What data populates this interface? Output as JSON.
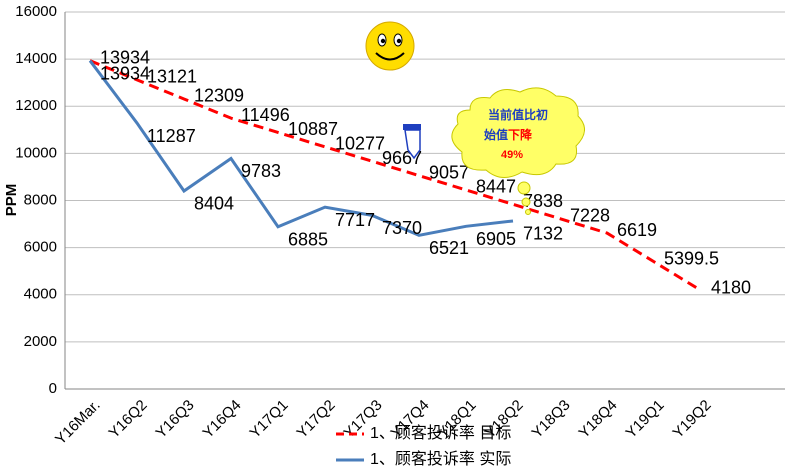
{
  "chart_data": {
    "type": "line",
    "categories": [
      "Y16Mar.",
      "Y16Q2",
      "Y16Q3",
      "Y16Q4",
      "Y17Q1",
      "Y17Q2",
      "Y17Q3",
      "Y17Q4",
      "Y18Q1",
      "Y18Q2",
      "Y18Q3",
      "Y18Q4",
      "Y19Q1",
      "Y19Q2"
    ],
    "series": [
      {
        "name": "1、顾客投诉率 目标",
        "color": "#ff0000",
        "dashed": true,
        "values": [
          13934,
          13121,
          12309,
          11496,
          10887,
          10277,
          9667,
          9057,
          8447,
          7838,
          7228,
          6619,
          5399.5,
          4180
        ]
      },
      {
        "name": "1、顾客投诉率 实际",
        "color": "#4a7ebb",
        "dashed": false,
        "values": [
          13934,
          11287,
          8404,
          9783,
          6885,
          7717,
          7370,
          6521,
          6905,
          7132,
          null,
          null,
          null,
          null
        ]
      }
    ],
    "y_label": "PPM",
    "ylim": [
      0,
      16000
    ],
    "yticks": [
      0,
      2000,
      4000,
      6000,
      8000,
      10000,
      12000,
      14000,
      16000
    ],
    "grid": true,
    "callout": {
      "line1": "当前值比初",
      "line2a": "始值",
      "line2b": "下降",
      "line3": "49%"
    }
  }
}
